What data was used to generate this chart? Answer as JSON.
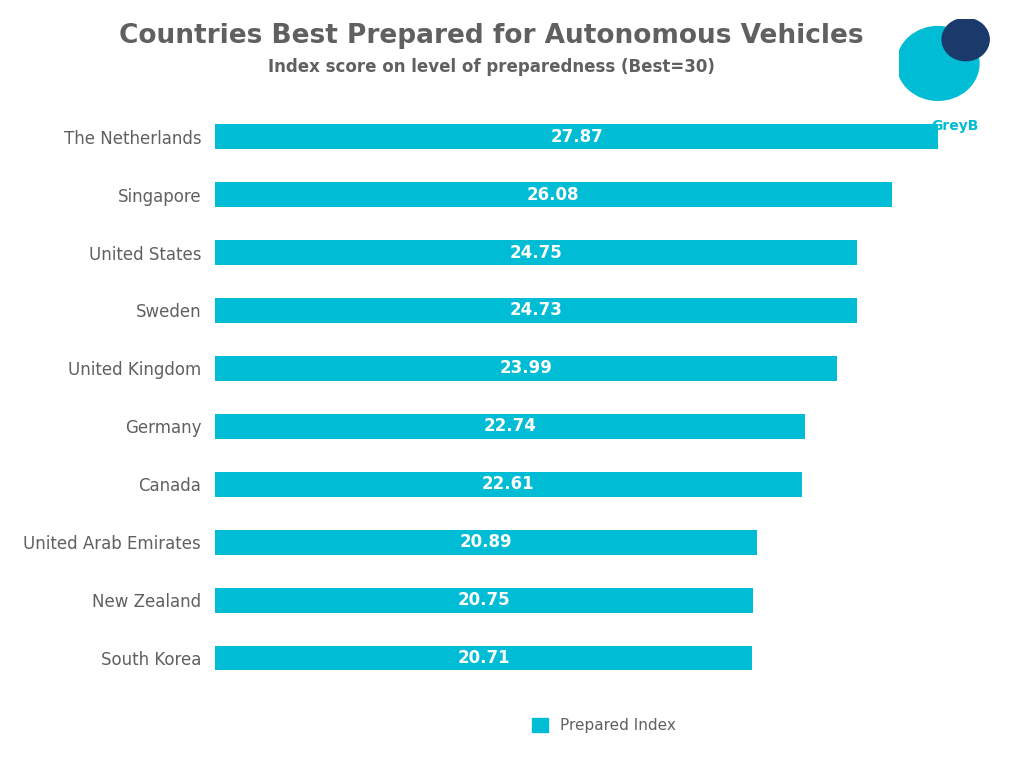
{
  "title": "Countries Best Prepared for Autonomous Vehicles",
  "subtitle": "Index score on level of preparedness (Best=30)",
  "countries": [
    "The Netherlands",
    "Singapore",
    "United States",
    "Sweden",
    "United Kingdom",
    "Germany",
    "Canada",
    "United Arab Emirates",
    "New Zealand",
    "South Korea"
  ],
  "values": [
    27.87,
    26.08,
    24.75,
    24.73,
    23.99,
    22.74,
    22.61,
    20.89,
    20.75,
    20.71
  ],
  "bar_color": "#00BCD4",
  "bar_label_color": "#ffffff",
  "title_color": "#606060",
  "subtitle_color": "#606060",
  "label_color": "#606060",
  "legend_label": "Prepared Index",
  "legend_color": "#00BCD4",
  "background_color": "#ffffff",
  "xlim": [
    0,
    30
  ],
  "title_fontsize": 19,
  "subtitle_fontsize": 12,
  "bar_label_fontsize": 12,
  "ylabel_fontsize": 12,
  "legend_fontsize": 11,
  "bar_height": 0.42,
  "logo_teal_color": "#00BCD4",
  "logo_navy_color": "#1a3a6b"
}
